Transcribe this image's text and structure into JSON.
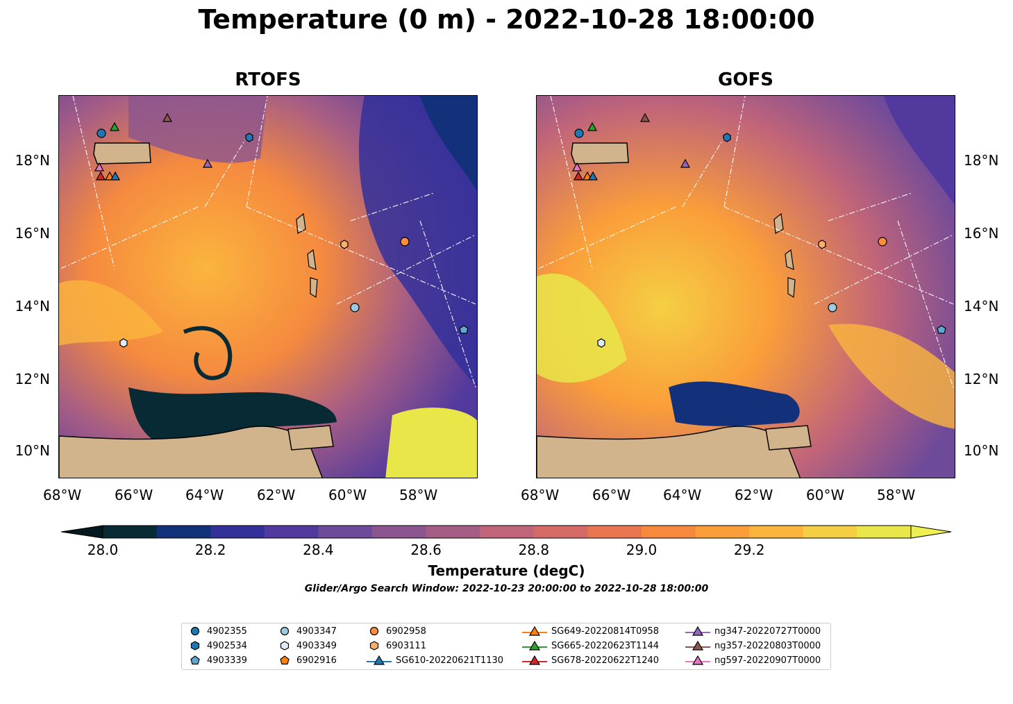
{
  "title": "Temperature (0 m) - 2022-10-28 18:00:00",
  "panels": [
    {
      "id": "rtofs",
      "title": "RTOFS"
    },
    {
      "id": "gofs",
      "title": "GOFS"
    }
  ],
  "axes": {
    "x_ticks": [
      "68°W",
      "66°W",
      "64°W",
      "62°W",
      "60°W",
      "58°W"
    ],
    "y_ticks": [
      "18°N",
      "16°N",
      "14°N",
      "12°N",
      "10°N"
    ]
  },
  "colorbar": {
    "label": "Temperature (degC)",
    "ticks": [
      "28.0",
      "28.2",
      "28.4",
      "28.6",
      "28.8",
      "29.0",
      "29.2"
    ],
    "colors": [
      "#082a35",
      "#13307a",
      "#33309a",
      "#51399e",
      "#6e4a9a",
      "#8b5590",
      "#a65d85",
      "#c0647a",
      "#d56b66",
      "#e87650",
      "#f58a3f",
      "#fa9e3a",
      "#fbb53d",
      "#f5cf43",
      "#e9e64a"
    ],
    "under_color": "#041820",
    "over_color": "#eef050"
  },
  "search_window": "Glider/Argo Search Window: 2022-10-23 20:00:00 to 2022-10-28 18:00:00",
  "legend": [
    {
      "label": "4902355",
      "marker": "circle",
      "color": "#1f77b4"
    },
    {
      "label": "4902534",
      "marker": "hexagon",
      "color": "#1f77b4"
    },
    {
      "label": "4903339",
      "marker": "pentagon",
      "color": "#5fa8d3"
    },
    {
      "label": "4903347",
      "marker": "circle",
      "color": "#9ecae1"
    },
    {
      "label": "4903349",
      "marker": "hexagon",
      "color": "#deebf7"
    },
    {
      "label": "6902916",
      "marker": "pentagon",
      "color": "#ff7f0e"
    },
    {
      "label": "6902958",
      "marker": "circle",
      "color": "#fd8d3c"
    },
    {
      "label": "6903111",
      "marker": "hexagon",
      "color": "#fdae6b"
    },
    {
      "label": "SG610-20220621T1130",
      "marker": "triangle-line",
      "color": "#1f77b4"
    },
    {
      "label": "SG649-20220814T0958",
      "marker": "triangle-line",
      "color": "#ff7f0e"
    },
    {
      "label": "SG665-20220623T1144",
      "marker": "triangle-line",
      "color": "#2ca02c"
    },
    {
      "label": "SG678-20220622T1240",
      "marker": "triangle-line",
      "color": "#d62728"
    },
    {
      "label": "ng347-20220727T0000",
      "marker": "triangle-line",
      "color": "#9467bd"
    },
    {
      "label": "ng357-20220803T0000",
      "marker": "triangle-line",
      "color": "#8c564b"
    },
    {
      "label": "ng597-20220907T0000",
      "marker": "triangle-line",
      "color": "#e377c2"
    }
  ]
}
